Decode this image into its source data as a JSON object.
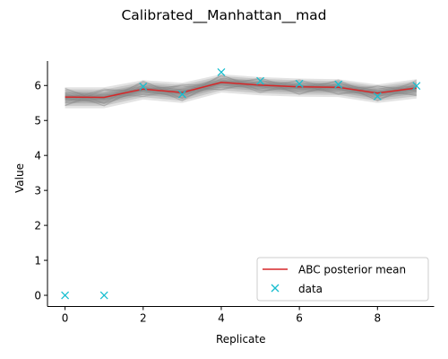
{
  "chart_data": {
    "type": "line",
    "title": "Calibrated__Manhattan__mad",
    "xlabel": "Replicate",
    "ylabel": "Value",
    "xlim": [
      -0.45,
      9.45
    ],
    "ylim": [
      -0.32,
      6.7
    ],
    "x_ticks": [
      0,
      2,
      4,
      6,
      8
    ],
    "y_ticks": [
      0,
      1,
      2,
      3,
      4,
      5,
      6
    ],
    "x": [
      0,
      1,
      2,
      3,
      4,
      5,
      6,
      7,
      8,
      9
    ],
    "series": [
      {
        "name": "ABC posterior mean",
        "kind": "line",
        "color": "#d62728",
        "values": [
          5.67,
          5.66,
          5.9,
          5.8,
          6.09,
          6.01,
          5.96,
          5.95,
          5.78,
          5.93
        ]
      },
      {
        "name": "data",
        "kind": "marker",
        "marker": "x",
        "color": "#17becf",
        "values": [
          0.0,
          0.0,
          5.97,
          5.75,
          6.38,
          6.13,
          6.05,
          6.03,
          5.69,
          5.99
        ]
      }
    ],
    "posterior_band": {
      "color": "#808080",
      "lower": [
        5.35,
        5.35,
        5.6,
        5.5,
        5.8,
        5.72,
        5.68,
        5.67,
        5.5,
        5.63
      ],
      "upper": [
        5.95,
        5.95,
        6.15,
        6.08,
        6.32,
        6.24,
        6.2,
        6.18,
        6.03,
        6.18
      ]
    },
    "legend": {
      "position": "lower-right",
      "entries": [
        "ABC posterior mean",
        "data"
      ]
    },
    "grid": false
  }
}
